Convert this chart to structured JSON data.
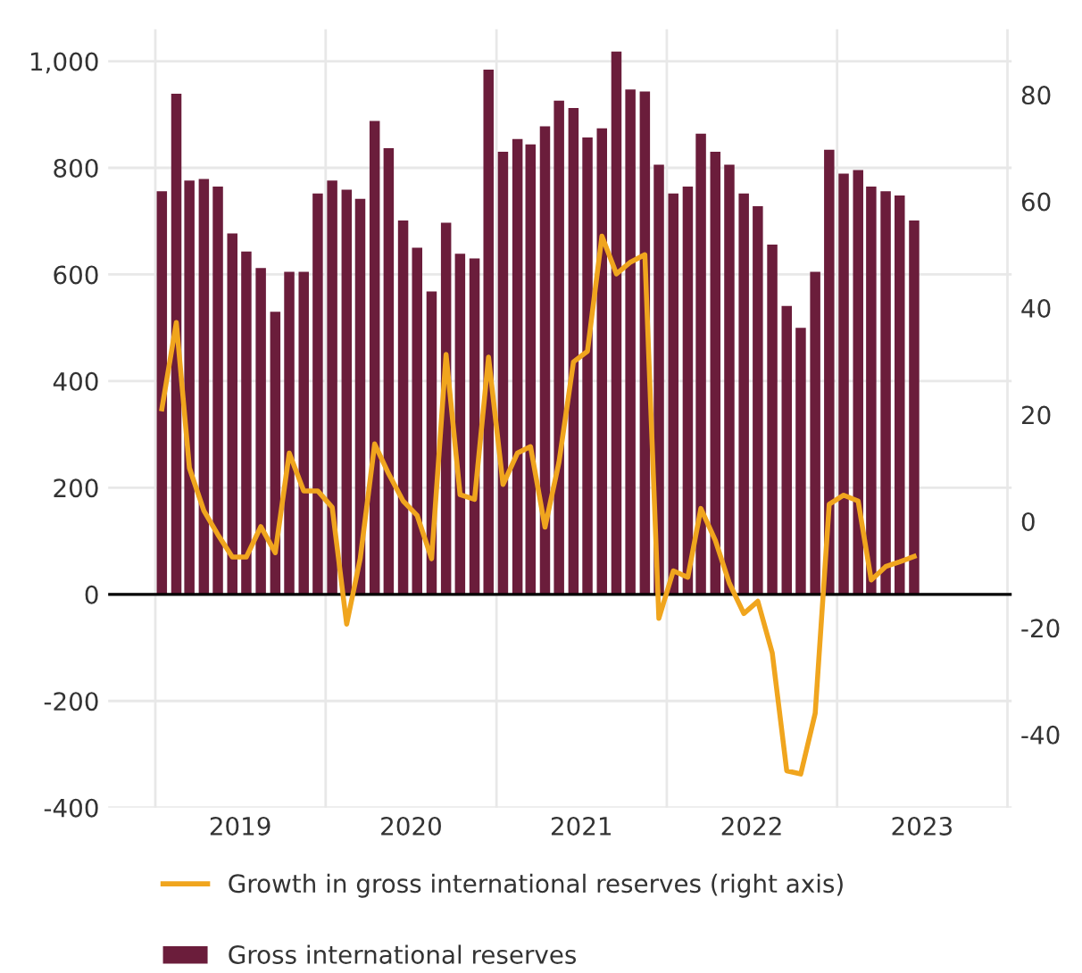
{
  "chart_data": {
    "type": "bar",
    "x": [
      "2019-01-15",
      "2019-02-15",
      "2019-03-15",
      "2019-04-15",
      "2019-05-15",
      "2019-06-15",
      "2019-07-15",
      "2019-08-15",
      "2019-09-15",
      "2019-10-15",
      "2019-11-15",
      "2019-12-15",
      "2020-01-15",
      "2020-02-15",
      "2020-03-15",
      "2020-04-15",
      "2020-05-15",
      "2020-06-15",
      "2020-07-15",
      "2020-08-15",
      "2020-09-15",
      "2020-10-15",
      "2020-11-15",
      "2020-12-15",
      "2021-01-15",
      "2021-02-15",
      "2021-03-15",
      "2021-04-15",
      "2021-05-15",
      "2021-06-15",
      "2021-07-15",
      "2021-08-15",
      "2021-09-15",
      "2021-10-15",
      "2021-11-15",
      "2021-12-15",
      "2022-01-15",
      "2022-02-15",
      "2022-03-15",
      "2022-04-15",
      "2022-05-15",
      "2022-06-15",
      "2022-07-15",
      "2022-08-15",
      "2022-09-15",
      "2022-10-15",
      "2022-11-15",
      "2022-12-15",
      "2023-01-15",
      "2023-02-15",
      "2023-03-15",
      "2023-04-15",
      "2023-05-15",
      "2023-06-15"
    ],
    "series": [
      {
        "name": "Growth in gross international reserves (right axis)",
        "type": "line",
        "axis": "y2",
        "color": "#f0a51e",
        "values": [
          21.1,
          37.3,
          10,
          2,
          -2.5,
          -6.7,
          -6.7,
          -1,
          -5.9,
          12.8,
          5.7,
          5.7,
          2.6,
          -19.3,
          -7,
          14.5,
          8.9,
          3.8,
          1.1,
          -7,
          31.3,
          5,
          4.1,
          30.8,
          6.9,
          12.8,
          14,
          -1.1,
          11.1,
          29.9,
          31.9,
          53.5,
          46.4,
          48.6,
          50,
          -18.2,
          -9.3,
          -10.5,
          2.4,
          -3.6,
          -11.6,
          -17.3,
          -15,
          -24.7,
          -46.8,
          -47.4,
          -36,
          3.2,
          4.9,
          3.8,
          -11,
          -8.5,
          -7.6,
          -6.6
        ]
      },
      {
        "name": "Gross international reserves",
        "color": "#6b1d3b",
        "values": [
          756,
          939,
          776,
          779,
          765,
          677,
          643,
          612,
          530,
          605,
          605,
          752,
          776,
          759,
          742,
          888,
          837,
          701,
          650,
          568,
          697,
          639,
          630,
          984,
          830,
          854,
          844,
          878,
          926,
          912,
          857,
          874,
          1018,
          947,
          943,
          806,
          752,
          765,
          864,
          830,
          806,
          752,
          728,
          656,
          541,
          500,
          605,
          834,
          789,
          796,
          765,
          756,
          748,
          701
        ]
      }
    ],
    "xlim": [
      "2018-09-22",
      "2024-01-10"
    ],
    "xticks": [
      {
        "value": "2019-01-01",
        "label": null
      },
      {
        "value": "2019-07-02",
        "label": "2019"
      },
      {
        "value": "2020-01-01",
        "label": null
      },
      {
        "value": "2020-07-02",
        "label": "2020"
      },
      {
        "value": "2021-01-01",
        "label": null
      },
      {
        "value": "2021-07-02",
        "label": "2021"
      },
      {
        "value": "2022-01-01",
        "label": null
      },
      {
        "value": "2022-07-02",
        "label": "2022"
      },
      {
        "value": "2023-01-01",
        "label": null
      },
      {
        "value": "2023-07-02",
        "label": "2023"
      },
      {
        "value": "2024-01-01",
        "label": null
      }
    ],
    "ylim": [
      -400,
      1060
    ],
    "yticks": [
      -400,
      -200,
      0,
      200,
      400,
      600,
      800,
      {
        "value": 1000,
        "label": "1,000"
      }
    ],
    "y2lim": [
      -53.7,
      92.3
    ],
    "y2ticks": [
      -40,
      -20,
      0,
      20,
      40,
      60,
      80
    ],
    "ref_lines": [
      {
        "axis": "y",
        "value": 0,
        "color": "#000000"
      }
    ],
    "grid": true,
    "legend": "bottom"
  }
}
